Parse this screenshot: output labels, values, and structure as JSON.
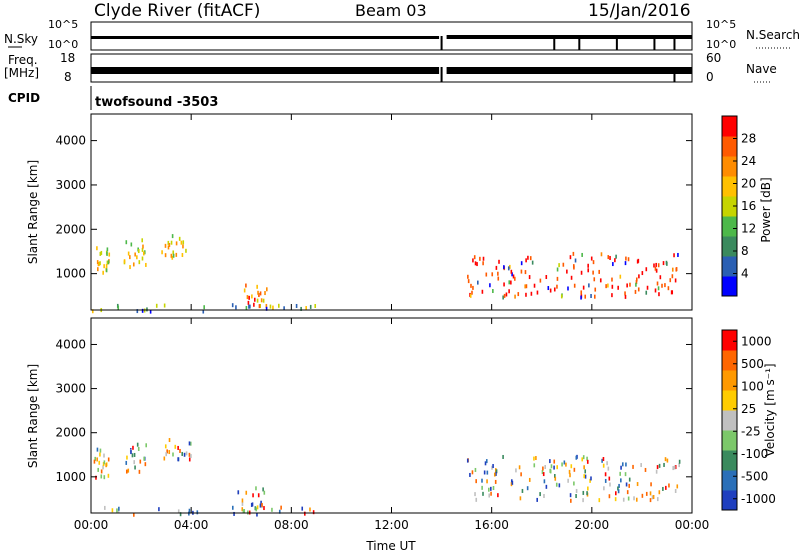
{
  "header": {
    "site": "Clyde River (fitACF)",
    "beam": "Beam 03",
    "date": "15/Jan/2016"
  },
  "strip_panels": {
    "nsky_label": "N.Sky",
    "nsky_ticks": [
      "10^5",
      "10^0"
    ],
    "nsearch_label": "N.Search",
    "freq_label_top": "Freq.",
    "freq_label_bottom": "[MHz]",
    "freq_ticks": [
      "18",
      "8"
    ],
    "nave_ticks": [
      "60",
      "0"
    ],
    "nave_label": "Nave",
    "cpid_label": "CPID",
    "cpid_value": "twofsound -3503"
  },
  "colors": {
    "power_scale": [
      "#0000ff",
      "#2a5fb3",
      "#3a8a5e",
      "#4db84a",
      "#c6d400",
      "#ffc000",
      "#ff8c00",
      "#ff5a00",
      "#ff0000"
    ],
    "velocity_scale": [
      "#1f3fbf",
      "#2a6fb8",
      "#3a8a5e",
      "#7cc86a",
      "#c0c0c0",
      "#ffcc00",
      "#ff9900",
      "#ff6600",
      "#ff0000"
    ]
  },
  "chart_data": [
    {
      "type": "heatmap",
      "name": "power",
      "x_ticks": [
        "00:00",
        "04:00",
        "08:00",
        "12:00",
        "16:00",
        "20:00",
        "00:00"
      ],
      "xlim_hours": [
        0,
        24
      ],
      "ylabel": "Slant Range [km]",
      "y_ticks": [
        1000,
        2000,
        3000,
        4000
      ],
      "ylim": [
        180,
        4600
      ],
      "colorbar_label": "Power [dB]",
      "colorbar_ticks": [
        "4",
        "8",
        "12",
        "16",
        "20",
        "24",
        "28"
      ],
      "regions": [
        {
          "t0": 0.1,
          "t1": 0.7,
          "r0": 1000,
          "r1": 1700,
          "level": "mid"
        },
        {
          "t0": 1.3,
          "t1": 2.2,
          "r0": 1100,
          "r1": 1800,
          "level": "mid"
        },
        {
          "t0": 2.8,
          "t1": 4.0,
          "r0": 1400,
          "r1": 1900,
          "level": "mid"
        },
        {
          "t0": 5.8,
          "t1": 7.0,
          "r0": 300,
          "r1": 800,
          "level": "mixed"
        },
        {
          "t0": 0.0,
          "t1": 9.0,
          "r0": 180,
          "r1": 350,
          "level": "low"
        },
        {
          "t0": 15.0,
          "t1": 23.5,
          "r0": 500,
          "r1": 1500,
          "level": "high"
        }
      ]
    },
    {
      "type": "heatmap",
      "name": "velocity",
      "x_ticks": [
        "00:00",
        "04:00",
        "08:00",
        "12:00",
        "16:00",
        "20:00",
        "00:00"
      ],
      "xlabel": "Time UT",
      "xlim_hours": [
        0,
        24
      ],
      "ylabel": "Slant Range [km]",
      "y_ticks": [
        1000,
        2000,
        3000,
        4000
      ],
      "ylim": [
        180,
        4600
      ],
      "colorbar_label": "Velocity [m s⁻¹]",
      "colorbar_ticks": [
        "1000",
        "500",
        "100",
        "25",
        "-25",
        "-100",
        "-500",
        "-1000"
      ],
      "regions": [
        {
          "t0": 0.1,
          "t1": 0.7,
          "r0": 1000,
          "r1": 1700,
          "level": "mid"
        },
        {
          "t0": 1.3,
          "t1": 2.2,
          "r0": 1100,
          "r1": 1800,
          "level": "mid"
        },
        {
          "t0": 2.8,
          "t1": 4.0,
          "r0": 1400,
          "r1": 1900,
          "level": "mid"
        },
        {
          "t0": 5.8,
          "t1": 7.0,
          "r0": 300,
          "r1": 800,
          "level": "mixed"
        },
        {
          "t0": 0.0,
          "t1": 9.0,
          "r0": 180,
          "r1": 350,
          "level": "low"
        },
        {
          "t0": 15.0,
          "t1": 23.5,
          "r0": 500,
          "r1": 1500,
          "level": "high"
        }
      ]
    }
  ]
}
